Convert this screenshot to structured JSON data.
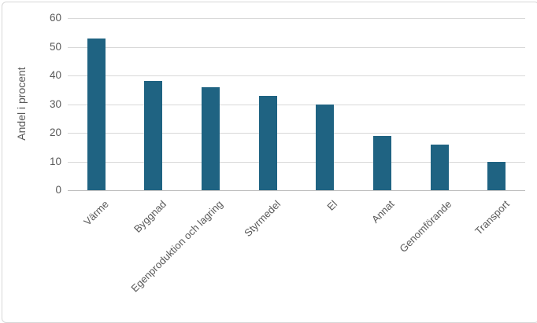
{
  "chart_data": {
    "type": "bar",
    "title": "",
    "xlabel": "",
    "ylabel": "Andel i procent",
    "categories": [
      "Värme",
      "Byggnad",
      "Egenproduktion och lagring",
      "Styrmedel",
      "El",
      "Annat",
      "Genomförande",
      "Transport"
    ],
    "values": [
      53,
      38,
      36,
      33,
      30,
      19,
      16,
      10
    ],
    "ylim": [
      0,
      60
    ],
    "yticks": [
      0,
      10,
      20,
      30,
      40,
      50,
      60
    ],
    "grid": true,
    "legend_position": "none",
    "x_label_rotation_deg": 45,
    "colors": {
      "bar": "#1f6382",
      "gridline": "#d9d9d9",
      "axis_line": "#bfbfbf",
      "text": "#595959",
      "frame_border": "#d7d7d7",
      "background": "#ffffff"
    }
  }
}
